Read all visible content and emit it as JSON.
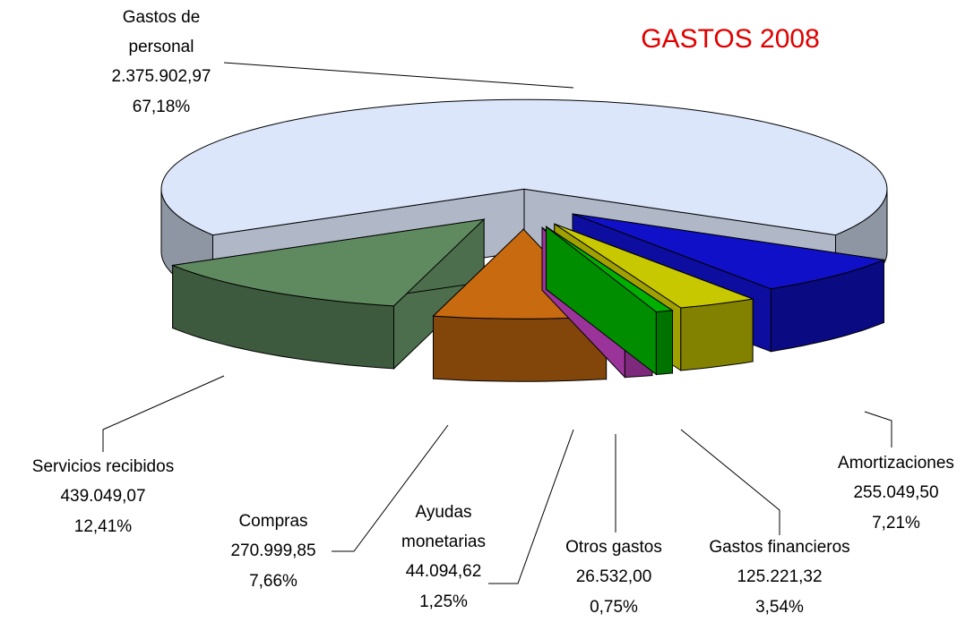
{
  "chart_data": {
    "type": "pie",
    "title": "GASTOS 2008",
    "categories": [
      "Gastos de personal",
      "Servicios recibidos",
      "Compras",
      "Ayudas monetarias",
      "Otros gastos",
      "Gastos financieros",
      "Amortizaciones"
    ],
    "values": [
      2375902.97,
      439049.07,
      270999.85,
      44094.62,
      26532.0,
      125221.32,
      255049.5
    ],
    "value_labels": [
      "2.375.902,97",
      "439.049,07",
      "270.999,85",
      "44.094,62",
      "26.532,00",
      "125.221,32",
      "255.049,50"
    ],
    "percents": [
      67.18,
      12.41,
      7.66,
      1.25,
      0.75,
      3.54,
      7.21
    ],
    "percent_labels": [
      "67,18%",
      "12,41%",
      "7,66%",
      "1,25%",
      "0,75%",
      "3,54%",
      "7,21%"
    ],
    "colors": [
      "#dce6fa",
      "#5f8a5f",
      "#c86a10",
      "#c040c0",
      "#00b000",
      "#c8c800",
      "#1010c8"
    ]
  }
}
